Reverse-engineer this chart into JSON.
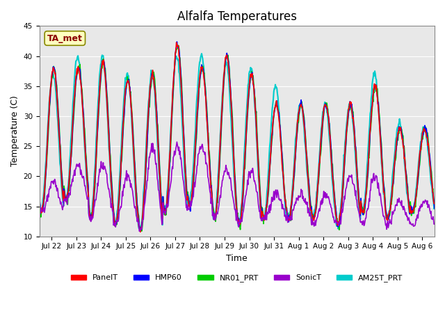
{
  "title": "Alfalfa Temperatures",
  "xlabel": "Time",
  "ylabel": "Temperature (C)",
  "ylim": [
    10,
    45
  ],
  "yticks": [
    10,
    15,
    20,
    25,
    30,
    35,
    40,
    45
  ],
  "annotation": "TA_met",
  "annotation_color": "#8B0000",
  "annotation_bg": "#FFFFC0",
  "bg_color": "#E8E8E8",
  "series": {
    "PanelT": {
      "color": "#FF0000",
      "lw": 1.2
    },
    "HMP60": {
      "color": "#0000FF",
      "lw": 1.2
    },
    "NR01_PRT": {
      "color": "#00CC00",
      "lw": 1.2
    },
    "SonicT": {
      "color": "#9900CC",
      "lw": 1.2
    },
    "AM25T_PRT": {
      "color": "#00CCCC",
      "lw": 1.5
    }
  },
  "xtick_labels": [
    "Jul 22",
    "Jul 23",
    "Jul 24",
    "Jul 25",
    "Jul 26",
    "Jul 27",
    "Jul 28",
    "Jul 29",
    "Jul 30",
    "Jul 31",
    "Aug 1",
    "Aug 2",
    "Aug 3",
    "Aug 4",
    "Aug 5",
    "Aug 6"
  ],
  "n_days": 16,
  "pts_per_day": 48,
  "day_peaks": [
    38,
    38,
    39,
    36,
    37,
    42,
    38,
    40,
    37,
    32,
    32,
    32,
    32,
    35,
    28,
    28
  ],
  "day_troughs": [
    14,
    16,
    13,
    12,
    11,
    14,
    15,
    13,
    12,
    13,
    13,
    13,
    12,
    14,
    13,
    14
  ],
  "am25_peaks": [
    37,
    40,
    40,
    37,
    37,
    40,
    40,
    39,
    38,
    35,
    32,
    32,
    32,
    37,
    29,
    28
  ],
  "am25_troughs": [
    14,
    16,
    13,
    12,
    11,
    14,
    16,
    13,
    12,
    13,
    13,
    13,
    12,
    14,
    13,
    14
  ],
  "sonic_peaks": [
    19,
    22,
    22,
    20,
    25,
    25,
    25,
    21,
    21,
    17,
    17,
    17,
    20,
    20,
    16,
    16
  ],
  "sonic_troughs": [
    14,
    16,
    13,
    12,
    11,
    14,
    15,
    13,
    12,
    13,
    13,
    12,
    12,
    12,
    12,
    12
  ]
}
